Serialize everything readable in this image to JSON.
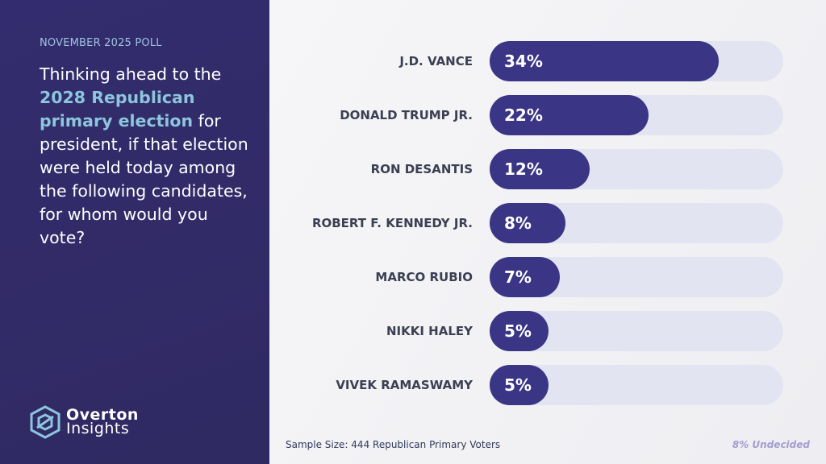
{
  "header": {
    "kicker": "NOVEMBER 2025 POLL",
    "question_parts": [
      "Thinking ahead to the ",
      "2028 Republican primary election",
      " for president, if that election were held today among the following candidates, for whom would you vote?"
    ]
  },
  "logo": {
    "line1": "Overton",
    "line2": "Insights"
  },
  "footer": {
    "sample": "Sample Size: 444 Republican Primary Voters",
    "undecided": "8% Undecided"
  },
  "colors": {
    "bar": "#3a3584",
    "track": "#e2e5f1",
    "highlight": "#8cc6dc"
  },
  "chart_data": {
    "type": "bar",
    "orientation": "horizontal",
    "title": "Thinking ahead to the 2028 Republican primary election for president, if that election were held today among the following candidates, for whom would you vote?",
    "categories": [
      "J.D. VANCE",
      "DONALD TRUMP JR.",
      "RON DESANTIS",
      "ROBERT F. KENNEDY JR.",
      "MARCO RUBIO",
      "NIKKI HALEY",
      "VIVEK RAMASWAMY"
    ],
    "values": [
      34,
      22,
      12,
      8,
      7,
      5,
      5
    ],
    "labels": [
      "34%",
      "22%",
      "12%",
      "8%",
      "7%",
      "5%",
      "5%"
    ],
    "unit": "%",
    "xlim": [
      0,
      45
    ],
    "grid": false
  }
}
